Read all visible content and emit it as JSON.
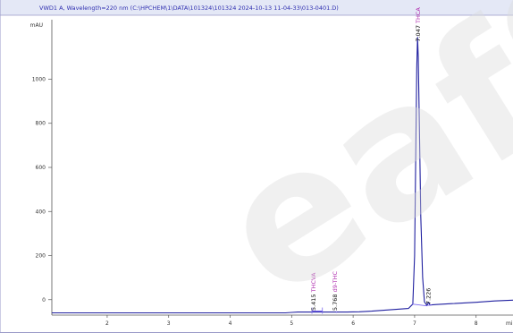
{
  "chart_data": {
    "type": "line",
    "title": "VWD1 A, Wavelength=220 nm (C:\\HPCHEM\\1\\DATA\\101324\\101324 2024-10-13 11-04-33\\013-0401.D)",
    "ylabel": "mAU",
    "xlabel": "",
    "x_unit_label": "mi",
    "xlim": [
      1.1,
      8.6
    ],
    "ylim": [
      -70,
      1270
    ],
    "grid": false,
    "y_ticks": [
      0,
      200,
      400,
      600,
      800,
      1000
    ],
    "x_ticks": [
      2,
      3,
      4,
      5,
      6,
      7,
      8
    ],
    "series": [
      {
        "color": "#2020a0",
        "points": [
          [
            1.1,
            -60
          ],
          [
            2.0,
            -60
          ],
          [
            3.0,
            -60
          ],
          [
            4.0,
            -60
          ],
          [
            4.9,
            -60
          ],
          [
            5.0,
            -58
          ],
          [
            5.1,
            -56
          ],
          [
            5.4,
            -56
          ],
          [
            5.9,
            -56
          ],
          [
            6.1,
            -55
          ],
          [
            6.3,
            -52
          ],
          [
            6.5,
            -48
          ],
          [
            6.7,
            -44
          ],
          [
            6.9,
            -40
          ],
          [
            6.97,
            -20
          ],
          [
            7.0,
            200
          ],
          [
            7.02,
            700
          ],
          [
            7.035,
            1050
          ],
          [
            7.047,
            1190
          ],
          [
            7.06,
            1100
          ],
          [
            7.08,
            750
          ],
          [
            7.1,
            380
          ],
          [
            7.13,
            100
          ],
          [
            7.16,
            -10
          ],
          [
            7.2,
            -26
          ],
          [
            7.226,
            -12
          ],
          [
            7.25,
            -24
          ],
          [
            7.35,
            -22
          ],
          [
            7.6,
            -18
          ],
          [
            8.0,
            -12
          ],
          [
            8.3,
            -6
          ],
          [
            8.6,
            -2
          ]
        ]
      }
    ],
    "peak_labels": [
      {
        "x": 5.415,
        "text": "5.415",
        "compound": "THCVA"
      },
      {
        "x": 5.768,
        "text": "5.768",
        "compound": "d9-THC"
      },
      {
        "x": 7.047,
        "text": "7.047",
        "compound": "THCA"
      },
      {
        "x": 7.226,
        "text": "7.226",
        "compound": ""
      }
    ],
    "watermark": "eafS"
  },
  "colors": {
    "axis": "#555555",
    "frame": "#9a9ac8",
    "header_bar": "#e4e8f6",
    "trace": "#2020a0",
    "baseline": "#7b68ee",
    "compound_label": "#b030b0",
    "rt_label": "#111111"
  }
}
